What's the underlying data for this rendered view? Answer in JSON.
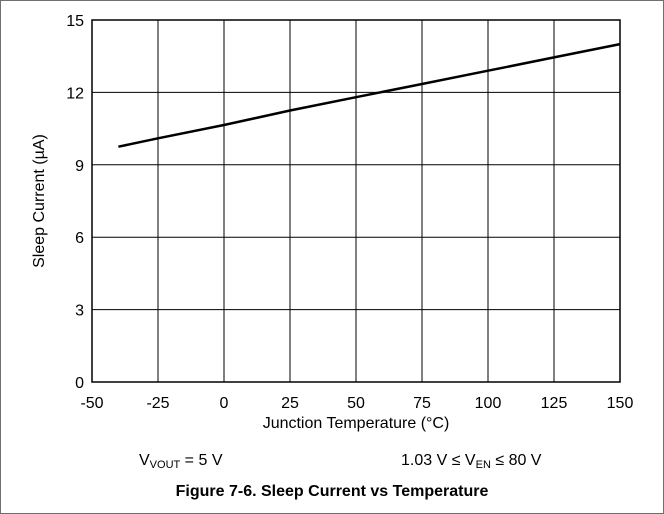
{
  "chart_data": {
    "type": "line",
    "xlabel": "Junction Temperature (°C)",
    "ylabel": "Sleep Current (µA)",
    "xlim": [
      -50,
      150
    ],
    "ylim": [
      0,
      15
    ],
    "xticks": [
      -50,
      -25,
      0,
      25,
      50,
      75,
      100,
      125,
      150
    ],
    "yticks": [
      0,
      3,
      6,
      9,
      12,
      15
    ],
    "grid": true,
    "series": [
      {
        "x": [
          -40,
          -25,
          0,
          25,
          50,
          75,
          100,
          125,
          150
        ],
        "y": [
          9.75,
          10.1,
          10.65,
          11.25,
          11.8,
          12.35,
          12.9,
          13.45,
          14.0
        ]
      }
    ],
    "colors": {
      "line": "#000000",
      "grid": "#000000",
      "axis": "#000000"
    }
  },
  "conditions": {
    "left": {
      "symbol": "V",
      "subscript": "VOUT",
      "text": " = 5 V"
    },
    "right": {
      "prefix": "1.03 V ≤ V",
      "subscript": "EN",
      "suffix": " ≤ 80 V"
    }
  },
  "caption": "Figure 7-6. Sleep Current vs Temperature"
}
